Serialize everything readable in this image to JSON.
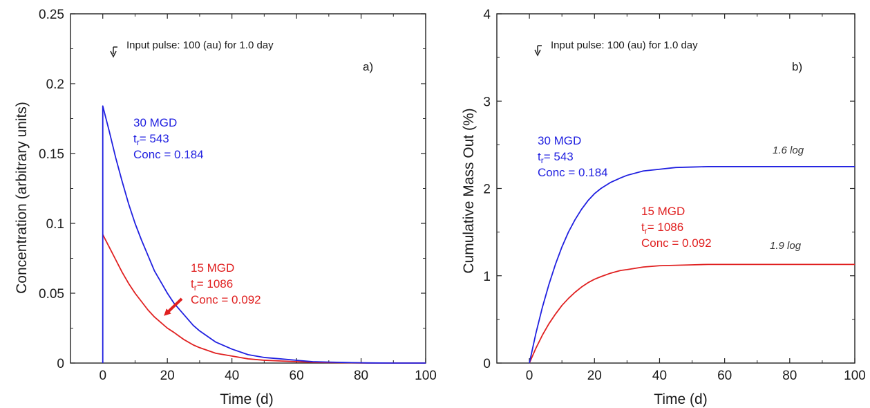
{
  "chart_data": [
    {
      "panel": "a)",
      "type": "line",
      "xlabel": "Time (d)",
      "ylabel": "Concentration (arbitrary units)",
      "xlim": [
        -10,
        100
      ],
      "ylim": [
        0,
        0.25
      ],
      "xticks": [
        0,
        20,
        40,
        60,
        80,
        100
      ],
      "yticks": [
        0,
        0.05,
        0.1,
        0.15,
        0.2,
        0.25
      ],
      "ytick_labels": [
        "0",
        "0.05",
        "0.1",
        "0.15",
        "0.2",
        "0.25"
      ],
      "input_note": "Input pulse: 100 (au) for 1.0 day",
      "series": [
        {
          "color": "#1f1fe0",
          "x": [
            0,
            0,
            2,
            4,
            6,
            8,
            10,
            12,
            14,
            16,
            18,
            20,
            22,
            25,
            28,
            30,
            35,
            40,
            45,
            50,
            55,
            60,
            65,
            70,
            75,
            80,
            82,
            90,
            100
          ],
          "y": [
            0,
            0.184,
            0.166,
            0.147,
            0.13,
            0.114,
            0.1,
            0.088,
            0.077,
            0.066,
            0.058,
            0.05,
            0.043,
            0.035,
            0.027,
            0.023,
            0.015,
            0.01,
            0.006,
            0.004,
            0.003,
            0.002,
            0.001,
            0.0007,
            0.0004,
            0.0002,
            0.0001,
            0,
            0
          ],
          "annotation": {
            "lines": [
              "30 MGD",
              "t",
              "Conc = 0.184"
            ],
            "t_sub": "r",
            "t_value": "= 543"
          }
        },
        {
          "color": "#e02020",
          "x": [
            0,
            2,
            4,
            6,
            8,
            10,
            12,
            14,
            16,
            18,
            20,
            22,
            25,
            28,
            30,
            35,
            40,
            45,
            50,
            55,
            60,
            65,
            70,
            80,
            90,
            100
          ],
          "y": [
            0.092,
            0.083,
            0.074,
            0.065,
            0.057,
            0.05,
            0.044,
            0.038,
            0.033,
            0.029,
            0.025,
            0.022,
            0.017,
            0.013,
            0.011,
            0.007,
            0.005,
            0.003,
            0.002,
            0.0015,
            0.001,
            0.0006,
            0.0004,
            0.0001,
            0,
            0
          ],
          "annotation": {
            "lines": [
              "15 MGD",
              "t",
              "Conc = 0.092"
            ],
            "t_sub": "r",
            "t_value": "= 1086"
          }
        }
      ]
    },
    {
      "panel": "b)",
      "type": "line",
      "xlabel": "Time (d)",
      "ylabel": "Cumulative Mass Out (%)",
      "xlim": [
        -10,
        100
      ],
      "ylim": [
        0,
        4
      ],
      "xticks": [
        0,
        20,
        40,
        60,
        80,
        100
      ],
      "yticks": [
        0,
        1,
        2,
        3,
        4
      ],
      "ytick_labels": [
        "0",
        "1",
        "2",
        "3",
        "4"
      ],
      "input_note": "Input pulse: 100 (au) for 1.0 day",
      "series": [
        {
          "color": "#1f1fe0",
          "x": [
            0,
            2,
            4,
            6,
            8,
            10,
            12,
            14,
            16,
            18,
            20,
            22,
            25,
            28,
            30,
            35,
            40,
            45,
            50,
            55,
            60,
            70,
            80,
            90,
            100
          ],
          "y": [
            0,
            0.34,
            0.64,
            0.9,
            1.13,
            1.33,
            1.5,
            1.64,
            1.76,
            1.86,
            1.94,
            2.0,
            2.07,
            2.12,
            2.15,
            2.2,
            2.22,
            2.24,
            2.245,
            2.25,
            2.25,
            2.25,
            2.25,
            2.25,
            2.25
          ],
          "annotation": {
            "lines": [
              "30 MGD",
              "t",
              "Conc = 0.184"
            ],
            "t_sub": "r",
            "t_value": "= 543"
          },
          "log_label": "1.6 log"
        },
        {
          "color": "#e02020",
          "x": [
            0,
            2,
            4,
            6,
            8,
            10,
            12,
            14,
            16,
            18,
            20,
            22,
            25,
            28,
            30,
            35,
            40,
            45,
            50,
            55,
            60,
            70,
            80,
            90,
            100
          ],
          "y": [
            0,
            0.17,
            0.32,
            0.45,
            0.56,
            0.66,
            0.74,
            0.81,
            0.87,
            0.92,
            0.96,
            0.99,
            1.03,
            1.06,
            1.07,
            1.1,
            1.115,
            1.12,
            1.125,
            1.13,
            1.13,
            1.13,
            1.13,
            1.13,
            1.13
          ],
          "annotation": {
            "lines": [
              "15 MGD",
              "t",
              "Conc = 0.092"
            ],
            "t_sub": "r",
            "t_value": "= 1086"
          },
          "log_label": "1.9 log"
        }
      ]
    }
  ]
}
